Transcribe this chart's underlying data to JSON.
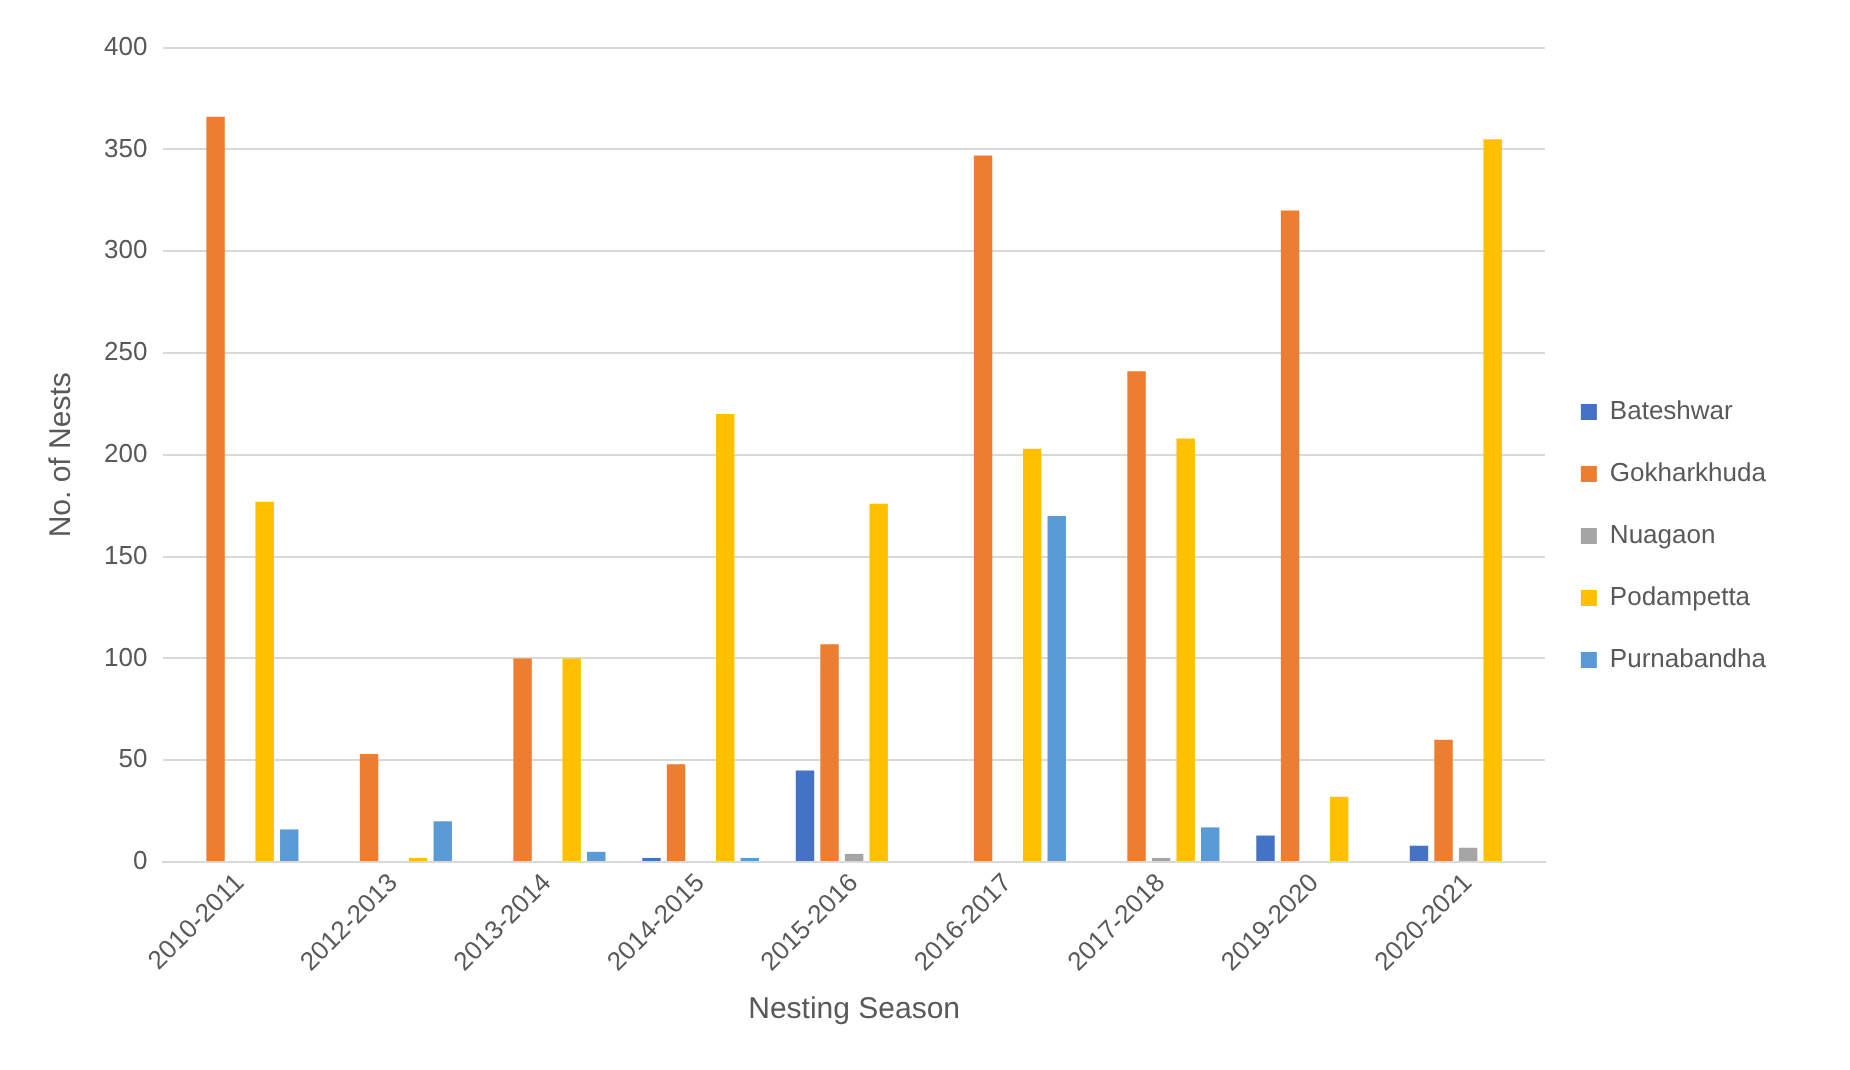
{
  "chart_data": {
    "type": "bar",
    "xlabel": "Nesting Season",
    "ylabel": "No. of Nests",
    "categories": [
      "2010-2011",
      "2012-2013",
      "2013-2014",
      "2014-2015",
      "2015-2016",
      "2016-2017",
      "2017-2018",
      "2019-2020",
      "2020-2021"
    ],
    "series": [
      {
        "name": "Bateshwar",
        "color": "#4472c4",
        "values": [
          0,
          0,
          0,
          2,
          45,
          0,
          0,
          13,
          8
        ]
      },
      {
        "name": "Gokharkhuda",
        "color": "#ed7d31",
        "values": [
          366,
          53,
          100,
          48,
          107,
          347,
          241,
          320,
          60
        ]
      },
      {
        "name": "Nuagaon",
        "color": "#a5a5a5",
        "values": [
          0,
          0,
          0,
          0,
          4,
          0,
          2,
          0,
          7
        ]
      },
      {
        "name": "Podampetta",
        "color": "#ffc000",
        "values": [
          177,
          2,
          100,
          220,
          176,
          203,
          208,
          32,
          355
        ]
      },
      {
        "name": "Purnabandha",
        "color": "#5b9bd5",
        "values": [
          16,
          20,
          5,
          2,
          0,
          170,
          17,
          0,
          0
        ]
      }
    ],
    "ylim": [
      0,
      400
    ],
    "yticks": [
      0,
      50,
      100,
      150,
      200,
      250,
      300,
      350,
      400
    ],
    "grid": "y",
    "legend": "right"
  }
}
